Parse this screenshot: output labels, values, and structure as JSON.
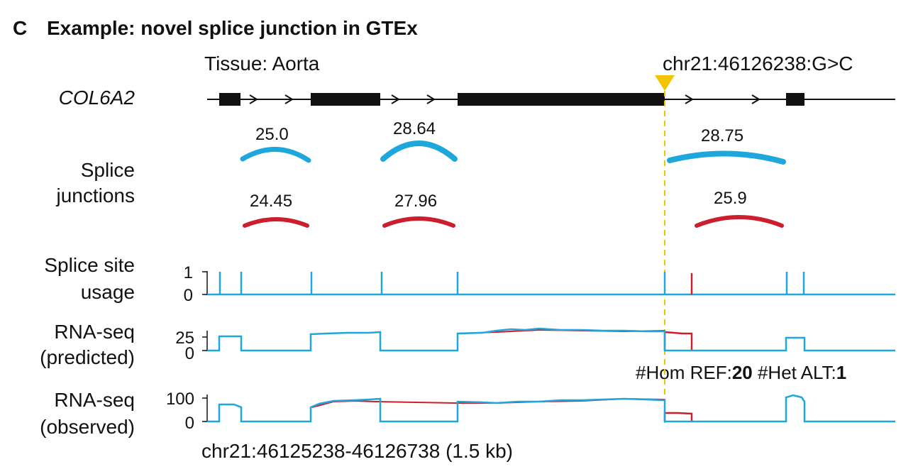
{
  "panel": {
    "letter": "C",
    "title": "Example: novel splice junction in GTEx"
  },
  "tissue_label": "Tissue: Aorta",
  "variant_label": "chr21:46126238:G>C",
  "gene_name": "COL6A2",
  "tracks": {
    "splice_junctions": {
      "line1": "Splice",
      "line2": "junctions"
    },
    "splice_site_usage": {
      "line1": "Splice site",
      "line2": "usage",
      "ticks": [
        "1",
        "0"
      ]
    },
    "rna_predicted": {
      "line1": "RNA-seq",
      "line2": "(predicted)",
      "ticks": [
        "25",
        "0"
      ]
    },
    "rna_observed": {
      "line1": "RNA-seq",
      "line2": "(observed)",
      "ticks": [
        "100",
        "0"
      ]
    }
  },
  "junctions": {
    "ref": [
      "25.0",
      "28.64",
      "28.75"
    ],
    "alt": [
      "24.45",
      "27.96",
      "25.9"
    ]
  },
  "genotype": {
    "hom_ref_label": "#Hom REF:",
    "hom_ref_value": "20",
    "het_alt_label": "#Het ALT:",
    "het_alt_value": "1"
  },
  "region_label": "chr21:46125238-46126738 (1.5 kb)",
  "colors": {
    "ref": "#1ea7dc",
    "alt": "#cc1f2e",
    "variant": "#f5c400",
    "exon": "#111111"
  }
}
